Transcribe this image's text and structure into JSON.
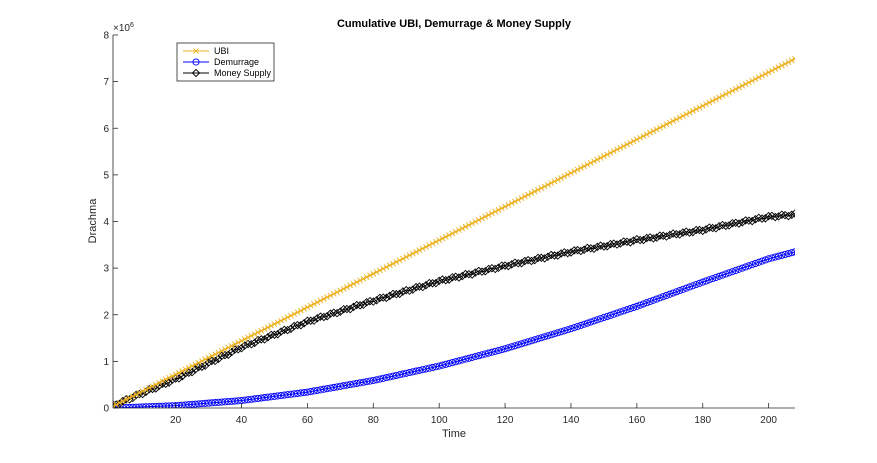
{
  "chart_data": {
    "type": "line",
    "title": "Cumulative UBI, Demurrage & Money Supply",
    "xlabel": "Time",
    "ylabel": "Drachma",
    "y_exponent": "×10",
    "y_exponent_power": "6",
    "xlim": [
      1,
      208
    ],
    "ylim": [
      0,
      8000000
    ],
    "xticks": [
      20,
      40,
      60,
      80,
      100,
      120,
      140,
      160,
      180,
      200
    ],
    "yticks": [
      0,
      1000000,
      2000000,
      3000000,
      4000000,
      5000000,
      6000000,
      7000000,
      8000000
    ],
    "ytick_labels": [
      "0",
      "1",
      "2",
      "3",
      "4",
      "5",
      "6",
      "7",
      "8"
    ],
    "grid": false,
    "legend_position": "top-left",
    "series": [
      {
        "name": "UBI",
        "color": "#EDB120",
        "marker": "x",
        "x": [
          1,
          20,
          40,
          60,
          80,
          100,
          120,
          140,
          160,
          180,
          200,
          208
        ],
        "values": [
          36000,
          720000,
          1440000,
          2160000,
          2880000,
          3600000,
          4320000,
          5040000,
          5760000,
          6480000,
          7200000,
          7490000
        ]
      },
      {
        "name": "Demurrage",
        "color": "#0000FF",
        "marker": "o",
        "x": [
          1,
          20,
          40,
          60,
          80,
          100,
          120,
          140,
          160,
          180,
          200,
          208
        ],
        "values": [
          0,
          50000,
          160000,
          340000,
          590000,
          900000,
          1270000,
          1700000,
          2180000,
          2700000,
          3200000,
          3350000
        ]
      },
      {
        "name": "Money Supply",
        "color": "#000000",
        "marker": "d",
        "x": [
          1,
          20,
          40,
          60,
          80,
          100,
          120,
          140,
          160,
          180,
          200,
          208
        ],
        "values": [
          50000,
          620000,
          1300000,
          1850000,
          2300000,
          2720000,
          3050000,
          3350000,
          3600000,
          3820000,
          4100000,
          4150000
        ]
      }
    ]
  }
}
